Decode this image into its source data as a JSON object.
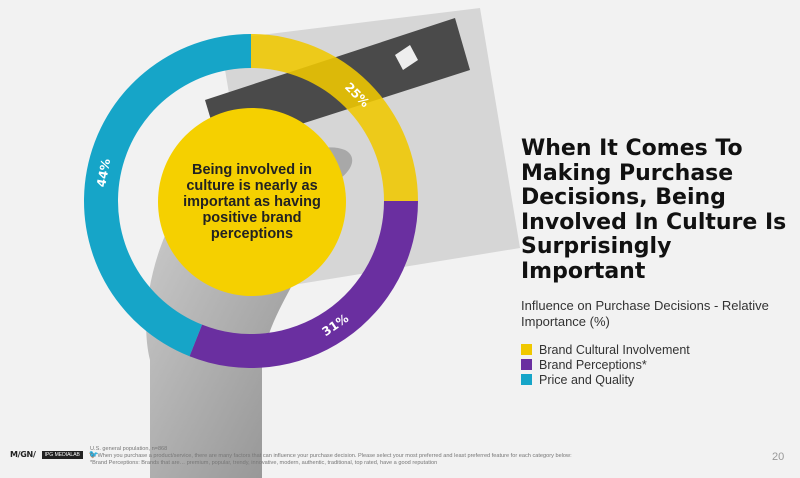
{
  "chart_data": {
    "type": "pie",
    "title": "When It Comes To Making Purchase Decisions, Being Involved In Culture Is Surprisingly Important",
    "subtitle": "Influence on Purchase Decisions - Relative Importance (%)",
    "slices": [
      {
        "name": "Brand Cultural Involvement",
        "value": 25,
        "label": "25%",
        "color": "#f0c800"
      },
      {
        "name": "Brand Perceptions*",
        "value": 31,
        "label": "31%",
        "color": "#6a2fa0"
      },
      {
        "name": "Price and Quality",
        "value": 44,
        "label": "44%",
        "color": "#16a5c8"
      }
    ],
    "annotation": "Being involved in culture is nearly as important as having positive brand perceptions",
    "legend_position": "below-right"
  },
  "footer": {
    "logos": {
      "magna": "M/GN/",
      "badge": "IPG MEDIALAB",
      "twitter_icon": "twitter-icon"
    },
    "notes": [
      "U.S. general population, n=868",
      "Q. When you purchase a product/service, there are many factors that can influence your purchase decision. Please select your most preferred and least preferred feature for each category below:",
      "*Brand Perceptions: Brands that are… premium, popular, trendy, innovative, modern, authentic, traditional, top rated, have a good reputation"
    ],
    "page_number": "20"
  }
}
